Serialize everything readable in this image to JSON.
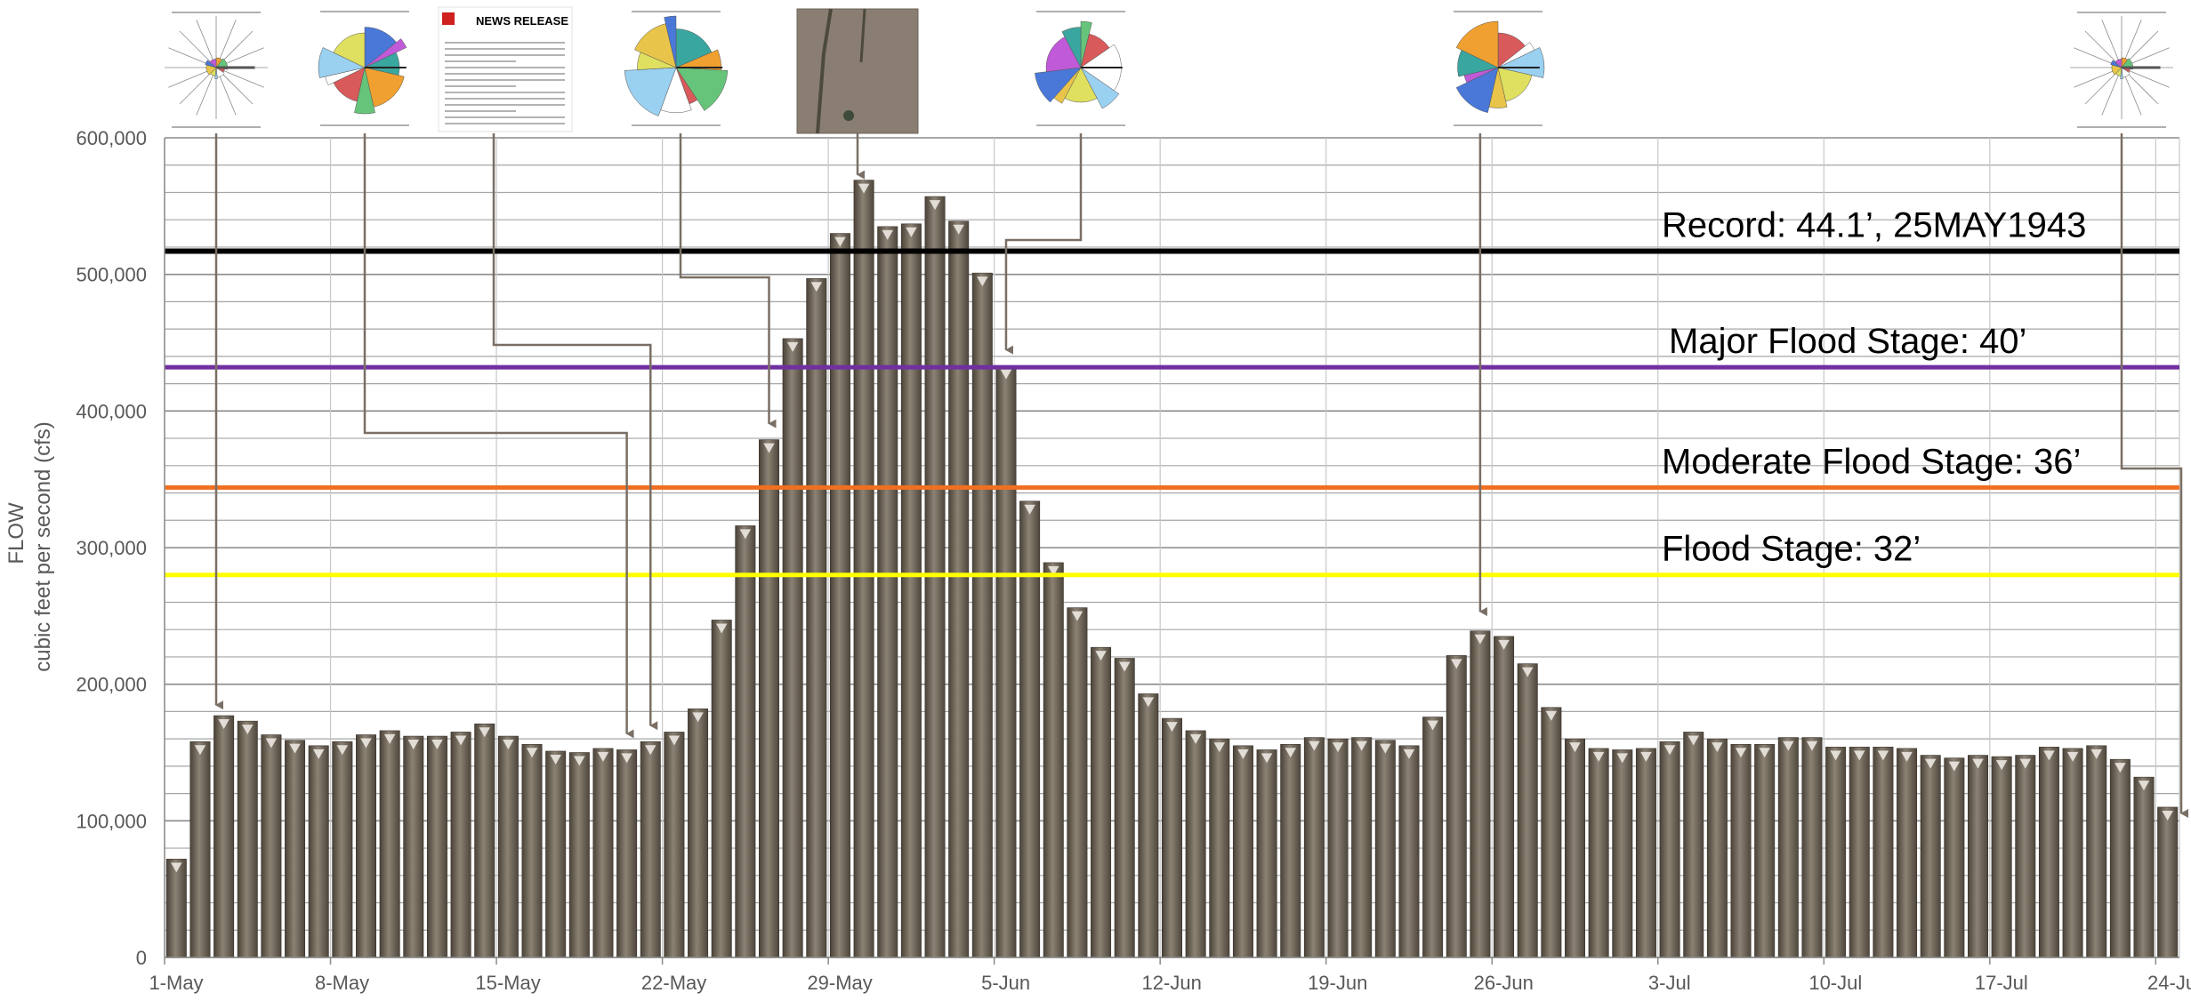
{
  "chart_data": {
    "type": "bar",
    "ylabel_line1": "FLOW",
    "ylabel_line2": "cubic feet per second (cfs)",
    "ylim": [
      0,
      600000
    ],
    "y_ticks": [
      0,
      100000,
      200000,
      300000,
      400000,
      500000,
      600000
    ],
    "y_tick_labels": [
      "0",
      "100,000",
      "200,000",
      "300,000",
      "400,000",
      "500,000",
      "600,000"
    ],
    "x_tick_labels": [
      "1-May",
      "8-May",
      "15-May",
      "22-May",
      "29-May",
      "5-Jun",
      "12-Jun",
      "19-Jun",
      "26-Jun",
      "3-Jul",
      "10-Jul",
      "17-Jul",
      "24-Jul"
    ],
    "grid": true,
    "values": [
      72000,
      158000,
      177000,
      173000,
      163000,
      159000,
      155000,
      158000,
      163000,
      166000,
      162000,
      162000,
      165000,
      171000,
      162000,
      156000,
      151000,
      150000,
      153000,
      152000,
      158000,
      165000,
      182000,
      247000,
      316000,
      379000,
      453000,
      497000,
      530000,
      569000,
      535000,
      537000,
      557000,
      539000,
      501000,
      433000,
      334000,
      289000,
      256000,
      227000,
      219000,
      193000,
      175000,
      166000,
      160000,
      155000,
      152000,
      156000,
      161000,
      160000,
      161000,
      159000,
      155000,
      176000,
      221000,
      239000,
      235000,
      215000,
      183000,
      160000,
      153000,
      152000,
      153000,
      158000,
      165000,
      160000,
      156000,
      156000,
      161000,
      161000,
      154000,
      154000,
      154000,
      153000,
      148000,
      146000,
      148000,
      147000,
      148000,
      154000,
      153000,
      155000,
      145000,
      132000,
      110000
    ],
    "reference_lines": [
      {
        "label": "Record: 44.1’, 25MAY1943",
        "value": 517000,
        "color": "#000000"
      },
      {
        "label": "Major Flood Stage: 40’",
        "value": 432000,
        "color": "#7030a0"
      },
      {
        "label": "Moderate Flood Stage: 36’",
        "value": 344000,
        "color": "#f07020"
      },
      {
        "label": "Flood Stage: 32’",
        "value": 280000,
        "color": "#ffff00"
      }
    ],
    "thumbnails": [
      {
        "kind": "radial",
        "bar": 3
      },
      {
        "kind": "pie",
        "bar": 19
      },
      {
        "kind": "document",
        "bar": 20,
        "heading": "NEWS RELEASE"
      },
      {
        "kind": "pie",
        "bar": 25
      },
      {
        "kind": "photo",
        "bar": 29
      },
      {
        "kind": "pie",
        "bar": 35
      },
      {
        "kind": "pie",
        "bar": 55
      },
      {
        "kind": "radial",
        "bar": 84
      }
    ]
  }
}
